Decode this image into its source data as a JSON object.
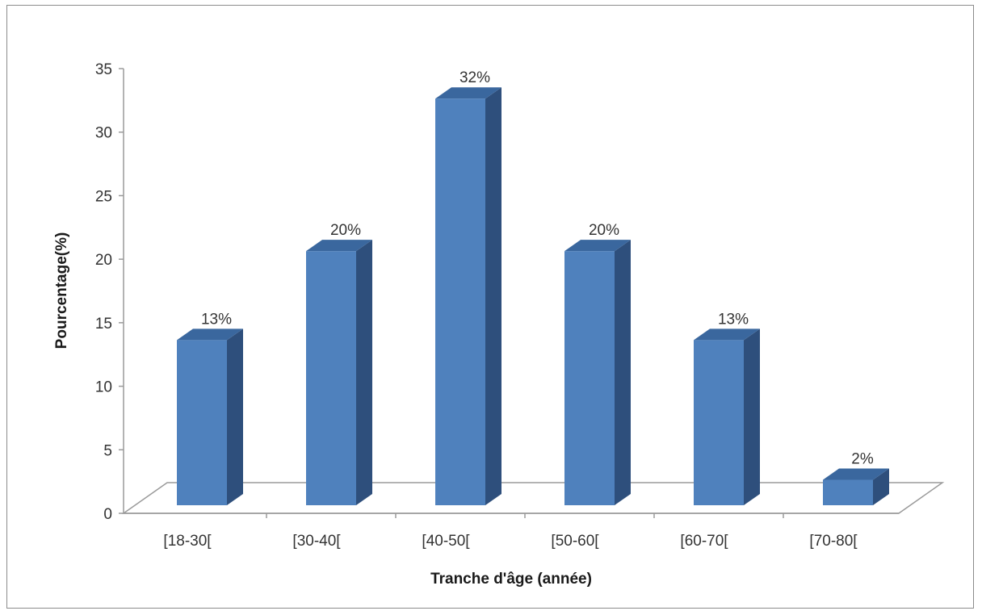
{
  "chart_data": {
    "type": "bar",
    "style": "3d-column",
    "categories": [
      "[18-30[",
      "[30-40[",
      "[40-50[",
      "[50-60[",
      "[60-70[",
      "[70-80["
    ],
    "values": [
      13,
      20,
      32,
      20,
      13,
      2
    ],
    "data_labels": [
      "13%",
      "20%",
      "32%",
      "20%",
      "13%",
      "2%"
    ],
    "xlabel": "Tranche d'âge (année)",
    "ylabel": "Pourcentage(%)",
    "ylim": [
      0,
      35
    ],
    "yticks": [
      "0",
      "5",
      "10",
      "15",
      "20",
      "25",
      "30",
      "35"
    ],
    "grid": false,
    "legend": "none",
    "colors": {
      "bar_front": "#4F81BD",
      "bar_side": "#2E4F7C",
      "bar_top": "#3A679E",
      "axis": "#9a9a9a"
    }
  }
}
